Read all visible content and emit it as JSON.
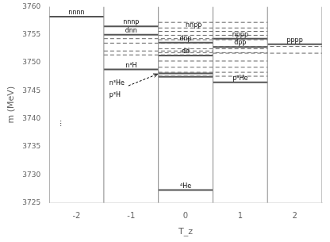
{
  "chart_data": {
    "type": "levels",
    "xlabel": "T_z",
    "ylabel": "m (MeV)",
    "xlim": [
      -2.5,
      2.5
    ],
    "xticks": [
      -2,
      -1,
      0,
      1,
      2
    ],
    "ylim": [
      3725,
      3760
    ],
    "yticks": [
      3725,
      3730,
      3735,
      3740,
      3745,
      3750,
      3755,
      3760
    ],
    "grid": false,
    "separators": {
      "color": "#888888",
      "x": [
        -2.5,
        -1.5,
        -0.5,
        0.5,
        1.5,
        2.5
      ]
    },
    "levels": {
      "color": "#555555",
      "items": [
        {
          "x0": -2.5,
          "x1": -1.5,
          "y": 3758.2,
          "label": "nnnn"
        },
        {
          "x0": -1.5,
          "x1": -0.5,
          "y": 3756.5,
          "label": "nnnp"
        },
        {
          "x0": -1.5,
          "x1": -0.5,
          "y": 3755.0,
          "label": "dnn"
        },
        {
          "x0": -1.5,
          "x1": -0.5,
          "y": 3748.8,
          "label": "n³H"
        },
        {
          "x0": -0.5,
          "x1": 0.5,
          "y": 3753.6,
          "label": "dnp"
        },
        {
          "x0": -0.5,
          "x1": 0.5,
          "y": 3751.3,
          "label": "dd"
        },
        {
          "x0": -0.5,
          "x1": 0.5,
          "y": 3748.1
        },
        {
          "x0": -0.5,
          "x1": 0.5,
          "y": 3747.5
        },
        {
          "x0": -0.5,
          "x1": 0.5,
          "y": 3727.3,
          "label": "⁴He"
        },
        {
          "x0": 0.5,
          "x1": 1.5,
          "y": 3754.3,
          "label": "nppp"
        },
        {
          "x0": 0.5,
          "x1": 1.5,
          "y": 3752.8,
          "label": "dpp"
        },
        {
          "x0": 0.5,
          "x1": 1.5,
          "y": 3746.5,
          "label": "p³He"
        },
        {
          "x0": 1.5,
          "x1": 2.5,
          "y": 3753.3,
          "label": "pppp"
        }
      ]
    },
    "dashed_levels": {
      "color": "#666666",
      "line_style": "dashed",
      "items": [
        {
          "x0": -1.5,
          "x1": 0.5,
          "y": 3754.3
        },
        {
          "x0": -1.5,
          "x1": 0.5,
          "y": 3753.5
        },
        {
          "x0": -1.5,
          "x1": 0.5,
          "y": 3752.1
        },
        {
          "x0": -1.5,
          "x1": 0.5,
          "y": 3751.4
        },
        {
          "x0": -0.5,
          "x1": 1.5,
          "y": 3757.2
        },
        {
          "x0": -0.5,
          "x1": 1.5,
          "y": 3756.2
        },
        {
          "x0": -0.5,
          "x1": 1.5,
          "y": 3755.6
        },
        {
          "x0": -0.5,
          "x1": 1.5,
          "y": 3754.9
        },
        {
          "x0": -0.5,
          "x1": 1.5,
          "y": 3754.1
        },
        {
          "x0": -0.5,
          "x1": 1.5,
          "y": 3752.5
        },
        {
          "x0": -0.5,
          "x1": 1.5,
          "y": 3751.8
        },
        {
          "x0": -0.5,
          "x1": 1.5,
          "y": 3750.3
        },
        {
          "x0": -0.5,
          "x1": 1.5,
          "y": 3749.2
        },
        {
          "x0": -0.5,
          "x1": 1.5,
          "y": 3748.3
        },
        {
          "x0": -0.5,
          "x1": 1.5,
          "y": 3747.6
        },
        {
          "x0": 0.5,
          "x1": 2.5,
          "y": 3752.9
        },
        {
          "x0": 0.5,
          "x1": 2.5,
          "y": 3751.7
        }
      ]
    },
    "annotations": [
      {
        "text": "nnpp",
        "x": 0.0,
        "y": 3756.1
      },
      {
        "text": "n³He",
        "x": -1.4,
        "y": 3745.8
      },
      {
        "text": "p³H",
        "x": -1.4,
        "y": 3743.6
      },
      {
        "text": "⋮",
        "x": -2.35,
        "y": 3738.5
      }
    ],
    "arrow": {
      "from": [
        -1.05,
        3745.9
      ],
      "to": [
        -0.51,
        3748.0
      ]
    }
  }
}
